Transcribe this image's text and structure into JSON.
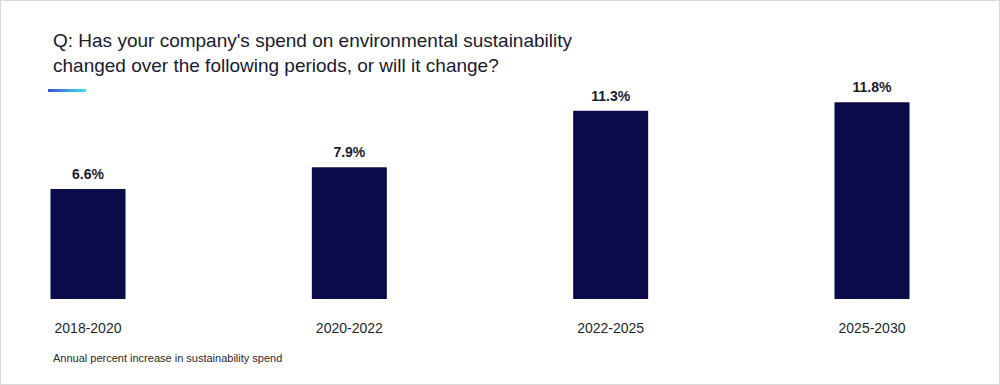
{
  "chart_data": {
    "type": "bar",
    "title": "Q: Has your company's spend on environmental sustainability changed over the following periods, or will it change?",
    "footnote": "Annual percent increase in sustainability spend",
    "categories": [
      "2018-2020",
      "2020-2022",
      "2022-2025",
      "2025-2030"
    ],
    "values": [
      6.6,
      7.9,
      11.3,
      11.8
    ],
    "value_labels": [
      "6.6%",
      "7.9%",
      "11.3%",
      "11.8%"
    ],
    "color": "#0c0b4a",
    "ylim": [
      0,
      12
    ],
    "yticks": [
      0,
      4,
      8,
      12
    ],
    "grid": false,
    "tick_labels": "x",
    "data_labels": true
  }
}
